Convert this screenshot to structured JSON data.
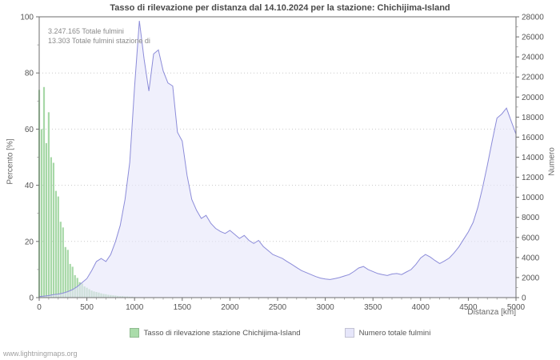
{
  "page": {
    "title": "Tasso di rilevazione per distanza dal 14.10.2024 per la stazione: Chichijima-Island",
    "annotation_line1": "3.247.165 Totale fulmini",
    "annotation_line2": "13.303 Totale fulmini stazione di",
    "ylabel_left": "Percento   [%]",
    "ylabel_right": "Numero",
    "xlabel": "Distanza   [km]",
    "footer": "www.lightningmaps.org"
  },
  "legend": {
    "items": [
      {
        "label": "Tasso di rilevazione stazione Chichijima-Island",
        "color": "#aadcaa"
      },
      {
        "label": "Numero totale fulmini",
        "color": "#e6e6fa"
      }
    ]
  },
  "chart_data": {
    "type": "area",
    "title": "Tasso di rilevazione per distanza dal 14.10.2024 per la stazione: Chichijima-Island",
    "xlabel": "Distanza [km]",
    "xlim": [
      0,
      5000
    ],
    "xticks": [
      0,
      500,
      1000,
      1500,
      2000,
      2500,
      3000,
      3500,
      4000,
      4500,
      5000
    ],
    "left_axis": {
      "label": "Percento [%]",
      "lim": [
        0,
        100
      ],
      "ticks": [
        0,
        20,
        40,
        60,
        80,
        100
      ]
    },
    "right_axis": {
      "label": "Numero",
      "lim": [
        0,
        28000
      ],
      "ticks": [
        0,
        2000,
        4000,
        6000,
        8000,
        10000,
        12000,
        14000,
        16000,
        18000,
        20000,
        22000,
        24000,
        26000,
        28000
      ]
    },
    "grid": "horizontal-dotted",
    "legend_position": "bottom",
    "series": [
      {
        "name": "Tasso di rilevazione stazione Chichijima-Island",
        "type": "bar",
        "axis": "left",
        "color": "#9dd49d",
        "x": [
          0,
          25,
          50,
          75,
          100,
          125,
          150,
          175,
          200,
          225,
          250,
          275,
          300,
          325,
          350,
          375,
          400,
          425,
          450,
          475,
          500,
          525,
          550,
          575,
          600,
          625,
          650,
          675,
          700,
          725,
          750,
          775,
          800,
          825,
          850,
          875,
          900,
          925,
          950,
          975,
          1000
        ],
        "values": [
          74,
          60,
          75,
          55,
          66,
          50,
          48,
          38,
          36,
          27,
          25,
          18,
          17,
          12,
          11,
          8,
          7,
          5.5,
          5,
          4,
          3.5,
          3,
          2.5,
          2.2,
          2,
          1.8,
          1.5,
          1.3,
          1.2,
          1,
          0.9,
          0.8,
          0.7,
          0.6,
          0.5,
          0.5,
          0.4,
          0.4,
          0.3,
          0.3,
          0.2
        ]
      },
      {
        "name": "Numero totale fulmini",
        "type": "area",
        "axis": "right",
        "fill": "#e6e6fa",
        "stroke": "#8c8cd9",
        "x": [
          0,
          50,
          100,
          150,
          200,
          250,
          300,
          350,
          400,
          450,
          500,
          550,
          600,
          650,
          700,
          750,
          800,
          850,
          900,
          950,
          1000,
          1050,
          1100,
          1150,
          1200,
          1250,
          1300,
          1350,
          1400,
          1450,
          1500,
          1550,
          1600,
          1650,
          1700,
          1750,
          1800,
          1850,
          1900,
          1950,
          2000,
          2050,
          2100,
          2150,
          2200,
          2250,
          2300,
          2350,
          2400,
          2450,
          2500,
          2550,
          2600,
          2650,
          2700,
          2750,
          2800,
          2850,
          2900,
          2950,
          3000,
          3050,
          3100,
          3150,
          3200,
          3250,
          3300,
          3350,
          3400,
          3450,
          3500,
          3550,
          3600,
          3650,
          3700,
          3750,
          3800,
          3850,
          3900,
          3950,
          4000,
          4050,
          4100,
          4150,
          4200,
          4250,
          4300,
          4350,
          4400,
          4450,
          4500,
          4550,
          4600,
          4650,
          4700,
          4750,
          4800,
          4850,
          4900,
          4950,
          5000
        ],
        "values": [
          100,
          150,
          200,
          300,
          350,
          450,
          600,
          800,
          1100,
          1500,
          1900,
          2700,
          3600,
          3900,
          3600,
          4300,
          5600,
          7200,
          9800,
          13500,
          21000,
          27600,
          23800,
          20600,
          24300,
          24700,
          22600,
          21400,
          21100,
          16500,
          15600,
          12200,
          9800,
          8700,
          7900,
          8200,
          7400,
          6900,
          6600,
          6400,
          6700,
          6300,
          5900,
          6200,
          5700,
          5400,
          5700,
          5100,
          4700,
          4300,
          4100,
          3900,
          3600,
          3300,
          3000,
          2700,
          2500,
          2300,
          2100,
          1950,
          1850,
          1800,
          1900,
          2000,
          2150,
          2300,
          2600,
          2950,
          3100,
          2800,
          2600,
          2400,
          2300,
          2200,
          2350,
          2400,
          2300,
          2550,
          2800,
          3300,
          3950,
          4300,
          4050,
          3700,
          3400,
          3650,
          3950,
          4450,
          5050,
          5800,
          6550,
          7500,
          9000,
          11000,
          13200,
          15600,
          17900,
          18300,
          18900,
          17600,
          16300
        ]
      }
    ]
  }
}
